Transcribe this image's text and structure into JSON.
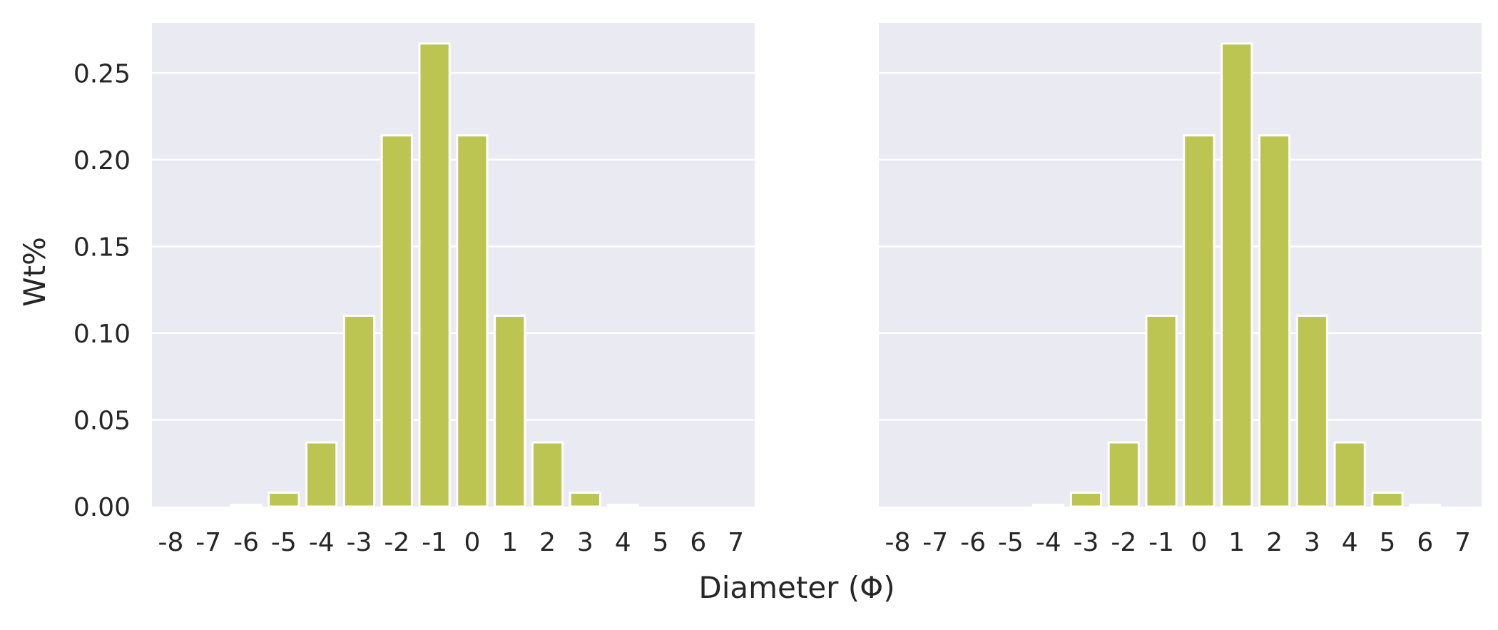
{
  "figure": {
    "xlabel": "Diameter (Φ)",
    "ylabel": "Wt%",
    "colors": {
      "background": "#ffffff",
      "plot_area": "#eaeaf2",
      "grid": "#ffffff",
      "bar_fill": "#bcc452",
      "bar_edge": "#ffffff",
      "text": "#262626"
    }
  },
  "chart_data": [
    {
      "type": "bar",
      "title": "",
      "xlabel": "Diameter (Φ)",
      "ylabel": "Wt%",
      "categories": [
        "-8",
        "-7",
        "-6",
        "-5",
        "-4",
        "-3",
        "-2",
        "-1",
        "0",
        "1",
        "2",
        "3",
        "4",
        "5",
        "6",
        "7"
      ],
      "values": [
        0.0,
        0.0,
        0.001,
        0.008,
        0.037,
        0.11,
        0.214,
        0.267,
        0.214,
        0.11,
        0.037,
        0.008,
        0.001,
        0.0,
        0.0,
        0.0
      ],
      "ylim": [
        0,
        0.28
      ],
      "yticks": [
        "0.00",
        "0.05",
        "0.10",
        "0.15",
        "0.20",
        "0.25"
      ],
      "grid": true,
      "legend": "none"
    },
    {
      "type": "bar",
      "title": "",
      "xlabel": "",
      "ylabel": "",
      "categories": [
        "-8",
        "-7",
        "-6",
        "-5",
        "-4",
        "-3",
        "-2",
        "-1",
        "0",
        "1",
        "2",
        "3",
        "4",
        "5",
        "6",
        "7"
      ],
      "values": [
        0.0,
        0.0,
        0.0,
        0.0,
        0.001,
        0.008,
        0.037,
        0.11,
        0.214,
        0.267,
        0.214,
        0.11,
        0.037,
        0.008,
        0.001,
        0.0
      ],
      "ylim": [
        0,
        0.28
      ],
      "yticks": [],
      "shared_y": true,
      "grid": true,
      "legend": "none"
    }
  ]
}
